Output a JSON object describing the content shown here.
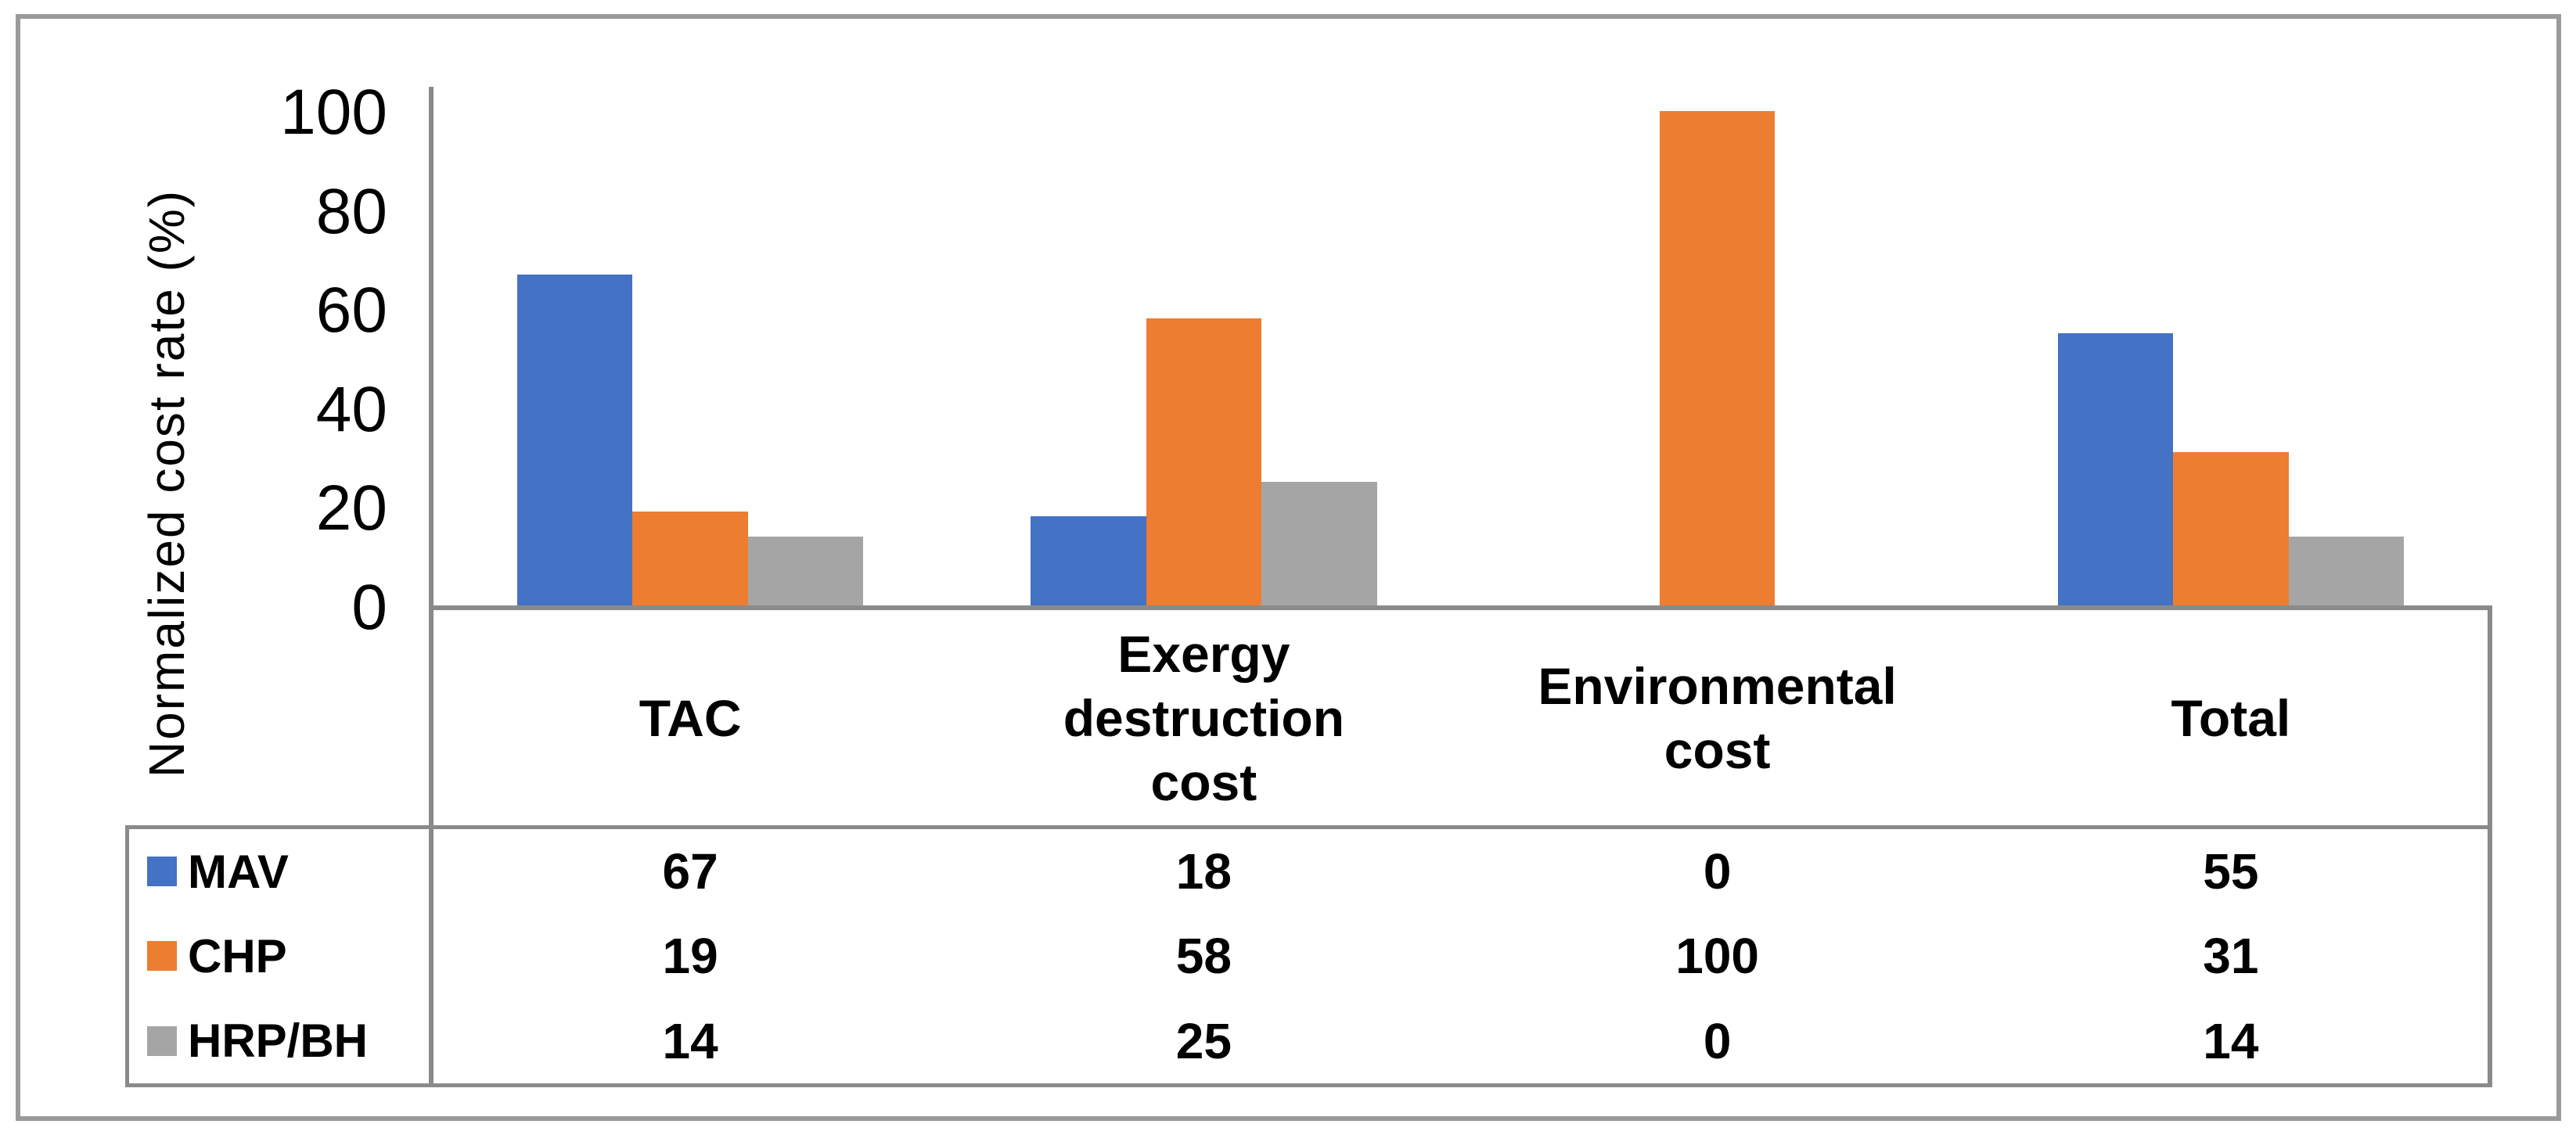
{
  "chart_data": {
    "type": "bar",
    "title": "",
    "ylabel": "Normalized cost rate (%)",
    "ylim": [
      0,
      100
    ],
    "yticks": [
      0,
      20,
      40,
      60,
      80,
      100
    ],
    "grid": false,
    "legend_position": "table-left-column",
    "categories": [
      "TAC",
      "Exergy destruction cost",
      "Environmental cost",
      "Total"
    ],
    "series": [
      {
        "name": "MAV",
        "color": "#4472C4",
        "values": [
          67,
          18,
          0,
          55
        ]
      },
      {
        "name": "CHP",
        "color": "#ED7D31",
        "values": [
          19,
          58,
          100,
          31
        ]
      },
      {
        "name": "HRP/BH",
        "color": "#A5A5A5",
        "values": [
          14,
          25,
          0,
          14
        ]
      }
    ]
  },
  "colors": {
    "axis_line": "#8A8A8A",
    "frame_border": "#9A9A9A",
    "text": "#000000",
    "background": "#FFFFFF",
    "bar_blue": "#4472C4",
    "bar_orange": "#ED7D31",
    "bar_gray": "#A5A5A5"
  }
}
